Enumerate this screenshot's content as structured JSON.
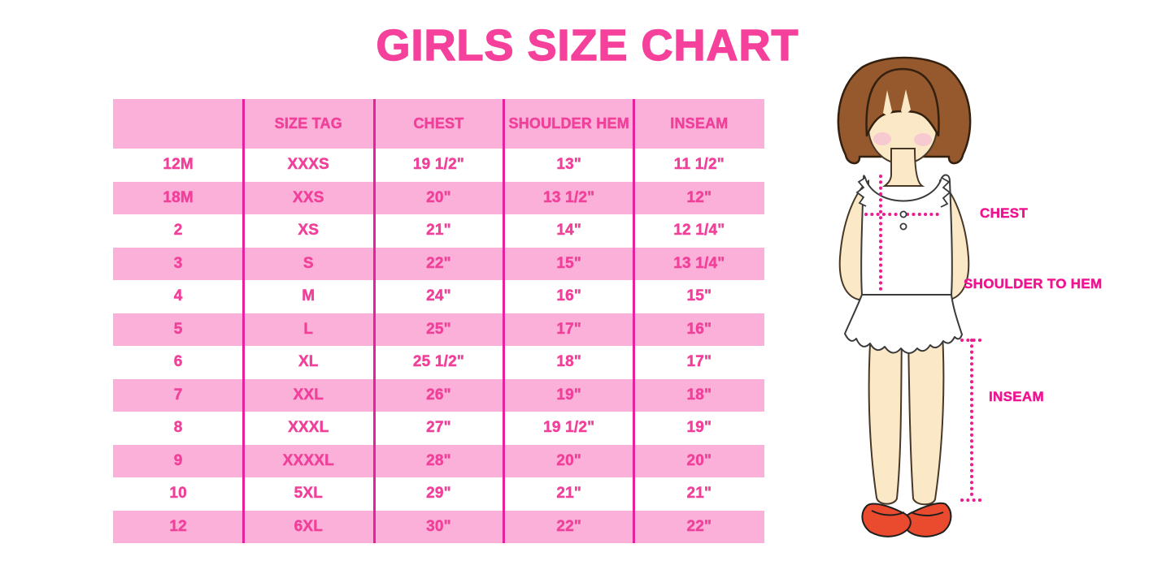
{
  "title": "GIRLS SIZE CHART",
  "chart_data": {
    "type": "table",
    "title": "GIRLS SIZE CHART",
    "columns": [
      "",
      "SIZE TAG",
      "CHEST",
      "SHOULDER HEM",
      "INSEAM"
    ],
    "rows": [
      [
        "12M",
        "XXXS",
        "19 1/2\"",
        "13\"",
        "11 1/2\""
      ],
      [
        "18M",
        "XXS",
        "20\"",
        "13 1/2\"",
        "12\""
      ],
      [
        "2",
        "XS",
        "21\"",
        "14\"",
        "12 1/4\""
      ],
      [
        "3",
        "S",
        "22\"",
        "15\"",
        "13 1/4\""
      ],
      [
        "4",
        "M",
        "24\"",
        "16\"",
        "15\""
      ],
      [
        "5",
        "L",
        "25\"",
        "17\"",
        "16\""
      ],
      [
        "6",
        "XL",
        "25 1/2\"",
        "18\"",
        "17\""
      ],
      [
        "7",
        "XXL",
        "26\"",
        "19\"",
        "18\""
      ],
      [
        "8",
        "XXXL",
        "27\"",
        "19 1/2\"",
        "19\""
      ],
      [
        "9",
        "XXXXL",
        "28\"",
        "20\"",
        "20\""
      ],
      [
        "10",
        "5XL",
        "29\"",
        "21\"",
        "21\""
      ],
      [
        "12",
        "6XL",
        "30\"",
        "22\"",
        "22\""
      ]
    ],
    "row_stripe_pattern": "header pink, then rows alternate white/pink starting white",
    "legend_position": "none",
    "grid": "vertical magenta dividers only, no outer border"
  },
  "diagram": {
    "labels": {
      "chest": "CHEST",
      "shoulder_to_hem": "SHOULDER TO HEM",
      "inseam": "INSEAM"
    }
  },
  "colors": {
    "title_pink": "#F5419B",
    "table_text_pink": "#F0409A",
    "row_pink": "#FBB0D9",
    "divider_magenta": "#E6219B",
    "label_magenta": "#F01390",
    "dotted_line_magenta": "#ED1A90",
    "hair_brown": "#96582D",
    "skin_cream": "#FBE8C6",
    "blush_pink": "#F6C3D2",
    "shoe_red": "#EA4A2E",
    "background": "#FFFFFF"
  }
}
